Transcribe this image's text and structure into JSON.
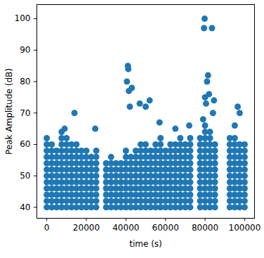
{
  "chart_data": {
    "type": "scatter",
    "xlabel": "time (s)",
    "ylabel": "Peak Amplitude (dB)",
    "color": "#1f77b4",
    "marker": "circle",
    "grid": false,
    "xlim": [
      -5000,
      105000
    ],
    "ylim": [
      36.5,
      104.5
    ],
    "xticks": [
      0,
      20000,
      40000,
      60000,
      80000,
      100000
    ],
    "yticks": [
      40,
      50,
      60,
      70,
      80,
      90,
      100
    ],
    "x": [
      0,
      0,
      0,
      0,
      0,
      0,
      0,
      0,
      0,
      0,
      0,
      0,
      2500,
      2500,
      2500,
      2500,
      2500,
      2500,
      2500,
      2500,
      2500,
      2500,
      2500,
      5000,
      5000,
      5000,
      5000,
      5000,
      5000,
      5000,
      5000,
      5000,
      5000,
      7500,
      7500,
      7500,
      7500,
      7500,
      7500,
      7500,
      7500,
      7500,
      7500,
      7500,
      7500,
      7500,
      10000,
      10000,
      10000,
      10000,
      10000,
      10000,
      10000,
      10000,
      10000,
      10000,
      10000,
      10000,
      12500,
      12500,
      12500,
      12500,
      12500,
      12500,
      12500,
      12500,
      12500,
      12500,
      12500,
      15000,
      15000,
      15000,
      15000,
      15000,
      15000,
      15000,
      15000,
      15000,
      15000,
      15000,
      17500,
      17500,
      17500,
      17500,
      17500,
      17500,
      17500,
      17500,
      17500,
      17500,
      20000,
      20000,
      20000,
      20000,
      20000,
      20000,
      20000,
      20000,
      20000,
      20000,
      22500,
      22500,
      22500,
      22500,
      22500,
      22500,
      22500,
      22500,
      22500,
      25000,
      25000,
      25000,
      25000,
      25000,
      25000,
      25000,
      25000,
      25000,
      25000,
      30000,
      30000,
      30000,
      30000,
      30000,
      30000,
      30000,
      30000,
      32500,
      32500,
      32500,
      32500,
      32500,
      32500,
      32500,
      32500,
      32500,
      35000,
      35000,
      35000,
      35000,
      35000,
      35000,
      35000,
      35000,
      37500,
      37500,
      37500,
      37500,
      37500,
      37500,
      37500,
      37500,
      40000,
      40000,
      40000,
      40000,
      40000,
      40000,
      40000,
      40000,
      40000,
      40000,
      42500,
      42500,
      42500,
      42500,
      42500,
      42500,
      42500,
      42500,
      42500,
      45000,
      45000,
      45000,
      45000,
      45000,
      45000,
      45000,
      45000,
      45000,
      45000,
      47500,
      47500,
      47500,
      47500,
      47500,
      47500,
      47500,
      47500,
      47500,
      47500,
      47500,
      50000,
      50000,
      50000,
      50000,
      50000,
      50000,
      50000,
      50000,
      50000,
      50000,
      50000,
      52500,
      52500,
      52500,
      52500,
      52500,
      52500,
      52500,
      52500,
      52500,
      52500,
      55000,
      55000,
      55000,
      55000,
      55000,
      55000,
      55000,
      55000,
      55000,
      55000,
      55000,
      57500,
      57500,
      57500,
      57500,
      57500,
      57500,
      57500,
      57500,
      57500,
      57500,
      57500,
      57500,
      60000,
      60000,
      60000,
      60000,
      60000,
      60000,
      60000,
      60000,
      60000,
      60000,
      62500,
      62500,
      62500,
      62500,
      62500,
      62500,
      62500,
      62500,
      62500,
      62500,
      62500,
      65000,
      65000,
      65000,
      65000,
      65000,
      65000,
      65000,
      65000,
      65000,
      65000,
      65000,
      67500,
      67500,
      67500,
      67500,
      67500,
      67500,
      67500,
      67500,
      67500,
      67500,
      67500,
      67500,
      70000,
      70000,
      70000,
      70000,
      70000,
      70000,
      70000,
      70000,
      70000,
      70000,
      70000,
      72500,
      72500,
      72500,
      72500,
      72500,
      72500,
      72500,
      72500,
      72500,
      72500,
      72500,
      72500,
      77500,
      77500,
      77500,
      77500,
      77500,
      77500,
      77500,
      77500,
      77500,
      77500,
      77500,
      77500,
      80000,
      80000,
      80000,
      80000,
      80000,
      80000,
      80000,
      80000,
      80000,
      80000,
      80000,
      80000,
      80000,
      80000,
      82500,
      82500,
      82500,
      82500,
      82500,
      82500,
      82500,
      82500,
      82500,
      82500,
      82500,
      82500,
      82500,
      85000,
      85000,
      85000,
      85000,
      85000,
      85000,
      85000,
      85000,
      85000,
      85000,
      85000,
      92500,
      92500,
      92500,
      92500,
      92500,
      92500,
      92500,
      92500,
      92500,
      92500,
      92500,
      92500,
      95000,
      95000,
      95000,
      95000,
      95000,
      95000,
      95000,
      95000,
      95000,
      95000,
      95000,
      95000,
      97500,
      97500,
      97500,
      97500,
      97500,
      97500,
      97500,
      97500,
      97500,
      97500,
      97500,
      100000,
      100000,
      100000,
      100000,
      100000,
      100000,
      100000,
      100000,
      100000,
      100000,
      100000,
      9000,
      14000,
      24500,
      40500,
      41000,
      41200,
      41500,
      42000,
      43000,
      47000,
      50000,
      52000,
      57000,
      65000,
      72000,
      79000,
      79500,
      79800,
      80000,
      80500,
      81000,
      81500,
      82000,
      83500,
      84000,
      84500,
      95000,
      96500,
      97500
    ],
    "values": [
      40,
      42,
      44,
      46,
      48,
      50,
      52,
      54,
      56,
      58,
      60,
      62,
      40,
      42,
      44,
      46,
      48,
      50,
      52,
      54,
      56,
      58,
      60,
      40,
      42,
      44,
      46,
      48,
      50,
      52,
      54,
      56,
      58,
      40,
      42,
      44,
      46,
      48,
      50,
      52,
      54,
      56,
      58,
      60,
      62,
      64,
      40,
      42,
      44,
      46,
      48,
      50,
      52,
      54,
      56,
      58,
      60,
      62,
      40,
      42,
      44,
      46,
      48,
      50,
      52,
      54,
      56,
      58,
      60,
      40,
      42,
      44,
      46,
      48,
      50,
      52,
      54,
      56,
      58,
      60,
      40,
      42,
      44,
      46,
      48,
      50,
      52,
      54,
      56,
      58,
      40,
      42,
      44,
      46,
      48,
      50,
      52,
      54,
      56,
      58,
      40,
      42,
      44,
      46,
      48,
      50,
      52,
      54,
      56,
      40,
      42,
      44,
      46,
      48,
      50,
      52,
      54,
      56,
      58,
      40,
      42,
      44,
      46,
      48,
      50,
      52,
      54,
      40,
      42,
      44,
      46,
      48,
      50,
      52,
      54,
      56,
      40,
      42,
      44,
      46,
      48,
      50,
      52,
      54,
      40,
      42,
      44,
      46,
      48,
      50,
      52,
      54,
      40,
      42,
      44,
      46,
      48,
      50,
      52,
      54,
      56,
      58,
      40,
      42,
      44,
      46,
      48,
      50,
      52,
      54,
      56,
      40,
      42,
      44,
      46,
      48,
      50,
      52,
      54,
      56,
      58,
      40,
      42,
      44,
      46,
      48,
      50,
      52,
      54,
      56,
      58,
      60,
      40,
      42,
      44,
      46,
      48,
      50,
      52,
      54,
      56,
      58,
      60,
      40,
      42,
      44,
      46,
      48,
      50,
      52,
      54,
      56,
      58,
      40,
      42,
      44,
      46,
      48,
      50,
      52,
      54,
      56,
      58,
      60,
      40,
      42,
      44,
      46,
      48,
      50,
      52,
      54,
      56,
      58,
      60,
      62,
      40,
      42,
      44,
      46,
      48,
      50,
      52,
      54,
      56,
      58,
      40,
      42,
      44,
      46,
      48,
      50,
      52,
      54,
      56,
      58,
      60,
      40,
      42,
      44,
      46,
      48,
      50,
      52,
      54,
      56,
      58,
      60,
      40,
      42,
      44,
      46,
      48,
      50,
      52,
      54,
      56,
      58,
      60,
      62,
      40,
      42,
      44,
      46,
      48,
      50,
      52,
      54,
      56,
      58,
      60,
      40,
      42,
      44,
      46,
      48,
      50,
      52,
      54,
      56,
      58,
      60,
      62,
      40,
      42,
      44,
      46,
      48,
      50,
      52,
      54,
      56,
      58,
      60,
      62,
      40,
      42,
      44,
      46,
      48,
      50,
      52,
      54,
      56,
      58,
      60,
      62,
      64,
      66,
      40,
      42,
      44,
      46,
      48,
      50,
      52,
      54,
      56,
      58,
      60,
      62,
      64,
      40,
      42,
      44,
      46,
      48,
      50,
      52,
      54,
      56,
      58,
      60,
      40,
      42,
      44,
      46,
      48,
      50,
      52,
      54,
      56,
      58,
      60,
      62,
      40,
      42,
      44,
      46,
      48,
      50,
      52,
      54,
      56,
      58,
      60,
      62,
      40,
      42,
      44,
      46,
      48,
      50,
      52,
      54,
      56,
      58,
      60,
      40,
      42,
      44,
      46,
      48,
      50,
      52,
      54,
      56,
      58,
      60,
      65,
      70,
      65,
      80,
      85,
      84,
      77,
      72,
      78,
      73,
      72,
      74,
      67,
      65,
      66,
      68,
      97,
      100,
      75,
      73,
      80,
      82,
      76,
      97,
      70,
      74,
      66,
      72,
      70
    ]
  }
}
